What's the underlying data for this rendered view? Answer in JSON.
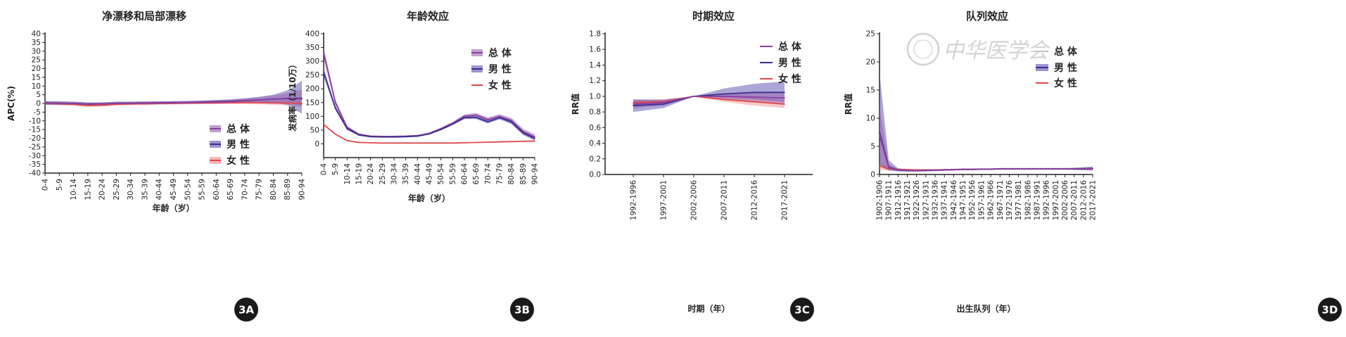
{
  "colors": {
    "overall": "#8b3fa0",
    "male": "#3d2f8c",
    "female": "#e0474c",
    "overall_band": "#9b5fb0",
    "male_band": "#5a4fb0",
    "female_band": "#f08a8c",
    "axis": "#222222",
    "badge": "#1a1a1a"
  },
  "watermark": {
    "text": "中华医学会",
    "icon": "seal-icon"
  },
  "chart_data": [
    {
      "id": "3A",
      "type": "line",
      "title": "净漂移和局部漂移",
      "xlabel": "年龄（岁）",
      "ylabel": "APC(%)",
      "badge": "3A",
      "categories": [
        "0-4",
        "5-9",
        "10-14",
        "15-19",
        "20-24",
        "25-29",
        "30-34",
        "35-39",
        "40-44",
        "45-49",
        "50-54",
        "55-59",
        "60-64",
        "65-69",
        "70-74",
        "75-79",
        "80-84",
        "85-89",
        "90-94"
      ],
      "ylim": [
        -40,
        40
      ],
      "yticks": [
        40,
        35,
        30,
        25,
        20,
        15,
        10,
        5,
        0,
        -5,
        -10,
        -15,
        -20,
        -25,
        -30,
        -35,
        -40
      ],
      "legend_position": "bottom-right",
      "legend": [
        {
          "name": "总体",
          "key": "overall",
          "style": "band"
        },
        {
          "name": "男性",
          "key": "male",
          "style": "band"
        },
        {
          "name": "女性",
          "key": "female",
          "style": "band"
        }
      ],
      "series": [
        {
          "name": "总体",
          "key": "overall",
          "values": [
            0.2,
            0.1,
            0,
            -0.5,
            -0.3,
            0,
            0.1,
            0.2,
            0.3,
            0.4,
            0.5,
            0.6,
            0.8,
            1,
            1.5,
            2,
            2.5,
            3,
            2.5
          ],
          "lower": [
            -0.8,
            -0.8,
            -0.9,
            -1.3,
            -1.1,
            -0.8,
            -0.7,
            -0.6,
            -0.5,
            -0.4,
            -0.3,
            -0.2,
            -0.2,
            0,
            0.3,
            0.5,
            0.5,
            0.3,
            -1.5
          ],
          "upper": [
            1.2,
            1,
            0.9,
            0.3,
            0.5,
            0.8,
            0.9,
            1,
            1.1,
            1.2,
            1.3,
            1.4,
            1.8,
            2.2,
            2.8,
            3.5,
            4.5,
            6,
            8
          ]
        },
        {
          "name": "男性",
          "key": "male",
          "values": [
            0.3,
            0.2,
            0,
            -0.3,
            -0.2,
            0.1,
            0.2,
            0.3,
            0.4,
            0.5,
            0.6,
            0.8,
            1,
            1.2,
            1.6,
            2,
            2.5,
            2.8,
            3
          ],
          "lower": [
            -0.7,
            -0.8,
            -1,
            -1.2,
            -1,
            -0.8,
            -0.6,
            -0.5,
            -0.4,
            -0.3,
            -0.2,
            -0.1,
            0,
            0.1,
            0.3,
            0.4,
            0.3,
            -0.8,
            -6
          ],
          "upper": [
            1.3,
            1.2,
            1,
            0.6,
            0.6,
            1,
            1,
            1.1,
            1.2,
            1.3,
            1.4,
            1.7,
            2,
            2.4,
            3,
            3.8,
            5,
            7.5,
            13
          ]
        },
        {
          "name": "女性",
          "key": "female",
          "values": [
            0,
            -0.2,
            -0.5,
            -1.2,
            -1,
            -0.5,
            -0.3,
            -0.2,
            0,
            0.1,
            0.2,
            0.3,
            0.4,
            0.5,
            0.5,
            0.4,
            0.3,
            0.2,
            0
          ],
          "lower": [
            -0.8,
            -1,
            -1.3,
            -2,
            -1.8,
            -1.2,
            -1,
            -0.9,
            -0.7,
            -0.6,
            -0.5,
            -0.4,
            -0.4,
            -0.3,
            -0.4,
            -0.5,
            -0.8,
            -1.2,
            -2
          ],
          "upper": [
            0.8,
            0.6,
            0.3,
            -0.4,
            -0.2,
            0.2,
            0.4,
            0.5,
            0.7,
            0.8,
            0.9,
            1,
            1.2,
            1.3,
            1.4,
            1.3,
            1.4,
            1.6,
            2
          ]
        }
      ]
    },
    {
      "id": "3B",
      "type": "line",
      "title": "年龄效应",
      "xlabel": "年龄（岁）",
      "ylabel": "发病率（1/10万）",
      "badge": "3B",
      "categories": [
        "0-4",
        "5-9",
        "10-14",
        "15-19",
        "20-24",
        "25-29",
        "30-34",
        "35-39",
        "40-44",
        "45-49",
        "50-54",
        "55-59",
        "60-64",
        "65-69",
        "70-74",
        "75-79",
        "80-84",
        "85-89",
        "90-94"
      ],
      "ylim": [
        -50,
        400
      ],
      "yticks": [
        400,
        350,
        300,
        250,
        200,
        150,
        100,
        50,
        0
      ],
      "legend_position": "top-right",
      "legend": [
        {
          "name": "总体",
          "key": "overall",
          "style": "band"
        },
        {
          "name": "男性",
          "key": "male",
          "style": "band"
        },
        {
          "name": "女性",
          "key": "female",
          "style": "line"
        }
      ],
      "series": [
        {
          "name": "总体",
          "key": "overall",
          "values": [
            330,
            150,
            60,
            35,
            28,
            27,
            27,
            28,
            30,
            38,
            55,
            75,
            100,
            105,
            88,
            100,
            85,
            45,
            25
          ],
          "lower": [
            310,
            140,
            55,
            32,
            26,
            25,
            25,
            26,
            28,
            35,
            51,
            70,
            93,
            98,
            80,
            92,
            75,
            35,
            15
          ],
          "upper": [
            350,
            160,
            65,
            38,
            30,
            29,
            29,
            30,
            32,
            41,
            59,
            80,
            107,
            112,
            96,
            108,
            95,
            55,
            35
          ]
        },
        {
          "name": "男性",
          "key": "male",
          "values": [
            260,
            130,
            55,
            32,
            26,
            25,
            25,
            26,
            28,
            36,
            52,
            72,
            95,
            96,
            80,
            95,
            80,
            40,
            20
          ],
          "lower": [
            245,
            122,
            51,
            30,
            24,
            23,
            23,
            24,
            26,
            34,
            49,
            68,
            90,
            90,
            74,
            89,
            72,
            32,
            12
          ],
          "upper": [
            275,
            138,
            59,
            34,
            28,
            27,
            27,
            28,
            30,
            38,
            55,
            76,
            100,
            102,
            86,
            101,
            88,
            48,
            28
          ]
        },
        {
          "name": "女性",
          "key": "female",
          "values": [
            70,
            35,
            12,
            5,
            4,
            3,
            3,
            3,
            3,
            3,
            3,
            3,
            4,
            5,
            6,
            7,
            8,
            9,
            10
          ],
          "lower": [
            66,
            32,
            10,
            4,
            3,
            2,
            2,
            2,
            2,
            2,
            2,
            2,
            3,
            4,
            5,
            6,
            6,
            7,
            7
          ],
          "upper": [
            74,
            38,
            14,
            6,
            5,
            4,
            4,
            4,
            4,
            4,
            4,
            4,
            5,
            6,
            7,
            8,
            10,
            11,
            13
          ]
        }
      ]
    },
    {
      "id": "3C",
      "type": "line",
      "title": "时期效应",
      "xlabel": "时期（年）",
      "ylabel": "RR值",
      "badge": "3C",
      "categories": [
        "1992-1996",
        "1997-2001",
        "2002-2006",
        "2007-2011",
        "2012-2016",
        "2017-2021"
      ],
      "ylim": [
        0,
        1.8
      ],
      "yticks": [
        1.8,
        1.6,
        1.4,
        1.2,
        1.0,
        0.8,
        0.6,
        0.4,
        0.2,
        0.0
      ],
      "ytick_labels": [
        "1.8",
        "1.6",
        "1.4",
        "1.2",
        "1.0",
        "0.8",
        "0.6",
        "0.4",
        "0.2",
        "0.0"
      ],
      "legend_position": "top-right",
      "legend": [
        {
          "name": "总体",
          "key": "overall",
          "style": "line"
        },
        {
          "name": "男性",
          "key": "male",
          "style": "line"
        },
        {
          "name": "女性",
          "key": "female",
          "style": "line"
        }
      ],
      "series": [
        {
          "name": "总体",
          "key": "overall",
          "values": [
            0.9,
            0.92,
            1.0,
            1.0,
            0.99,
            0.98
          ],
          "lower": [
            0.85,
            0.88,
            1.0,
            0.96,
            0.93,
            0.9
          ],
          "upper": [
            0.95,
            0.96,
            1.0,
            1.04,
            1.05,
            1.06
          ]
        },
        {
          "name": "男性",
          "key": "male",
          "values": [
            0.88,
            0.9,
            1.0,
            1.03,
            1.05,
            1.05
          ],
          "lower": [
            0.8,
            0.85,
            1.0,
            0.98,
            0.96,
            0.93
          ],
          "upper": [
            0.96,
            0.95,
            1.0,
            1.1,
            1.16,
            1.19
          ]
        },
        {
          "name": "女性",
          "key": "female",
          "values": [
            0.92,
            0.93,
            1.0,
            0.96,
            0.93,
            0.9
          ],
          "lower": [
            0.88,
            0.9,
            1.0,
            0.93,
            0.88,
            0.85
          ],
          "upper": [
            0.96,
            0.96,
            1.0,
            0.99,
            0.98,
            0.95
          ]
        }
      ]
    },
    {
      "id": "3D",
      "type": "line",
      "title": "队列效应",
      "xlabel": "出生队列（年）",
      "ylabel": "RR值",
      "badge": "3D",
      "categories": [
        "1902-1906",
        "1907-1911",
        "1912-1916",
        "1917-1921",
        "1922-1926",
        "1927-1931",
        "1932-1936",
        "1937-1941",
        "1942-1946",
        "1947-1951",
        "1952-1956",
        "1957-1961",
        "1962-1966",
        "1967-1971",
        "1972-1976",
        "1977-1981",
        "1982-1986",
        "1987-1991",
        "1992-1996",
        "1997-2001",
        "2002-2006",
        "2007-2011",
        "2012-2016",
        "2017-2021"
      ],
      "ylim": [
        0,
        25
      ],
      "yticks": [
        25,
        20,
        15,
        10,
        5,
        0
      ],
      "legend_position": "top-right",
      "legend": [
        {
          "name": "总体",
          "key": "overall",
          "style": "line"
        },
        {
          "name": "男性",
          "key": "male",
          "style": "band"
        },
        {
          "name": "女性",
          "key": "female",
          "style": "line"
        }
      ],
      "series": [
        {
          "name": "总体",
          "key": "overall",
          "values": [
            7,
            1.2,
            0.8,
            0.7,
            0.7,
            0.7,
            0.75,
            0.8,
            0.85,
            0.9,
            0.9,
            0.95,
            0.95,
            1,
            1,
            1,
            1,
            1,
            1,
            1,
            1,
            1,
            1,
            1.05
          ],
          "lower": [
            2,
            0.8,
            0.6,
            0.55,
            0.55,
            0.6,
            0.65,
            0.7,
            0.75,
            0.8,
            0.8,
            0.85,
            0.85,
            0.9,
            0.9,
            0.9,
            0.9,
            0.9,
            0.9,
            0.9,
            0.9,
            0.85,
            0.8,
            0.75
          ],
          "upper": [
            12,
            1.8,
            1.0,
            0.9,
            0.85,
            0.85,
            0.85,
            0.9,
            0.95,
            1,
            1,
            1.05,
            1.05,
            1.1,
            1.1,
            1.1,
            1.1,
            1.1,
            1.1,
            1.1,
            1.1,
            1.15,
            1.2,
            1.3
          ]
        },
        {
          "name": "男性",
          "key": "male",
          "values": [
            7.5,
            1.3,
            0.8,
            0.7,
            0.7,
            0.72,
            0.75,
            0.8,
            0.85,
            0.9,
            0.9,
            0.95,
            0.95,
            1,
            1,
            1,
            1,
            1,
            1,
            1,
            1,
            1,
            1.02,
            1.05
          ],
          "lower": [
            1.5,
            0.7,
            0.55,
            0.5,
            0.5,
            0.55,
            0.6,
            0.65,
            0.7,
            0.75,
            0.75,
            0.8,
            0.8,
            0.85,
            0.85,
            0.85,
            0.85,
            0.85,
            0.85,
            0.85,
            0.85,
            0.8,
            0.75,
            0.7
          ],
          "upper": [
            18,
            2.5,
            1.1,
            0.9,
            0.9,
            0.9,
            0.9,
            0.95,
            1,
            1.05,
            1.05,
            1.1,
            1.1,
            1.15,
            1.15,
            1.15,
            1.15,
            1.15,
            1.15,
            1.15,
            1.15,
            1.2,
            1.3,
            1.4
          ]
        },
        {
          "name": "女性",
          "key": "female",
          "values": [
            1.5,
            1.0,
            0.9,
            0.85,
            0.8,
            0.8,
            0.8,
            0.85,
            0.85,
            0.9,
            0.9,
            0.95,
            0.95,
            1,
            1,
            1,
            1,
            1,
            1,
            1,
            1,
            1,
            1,
            1
          ],
          "lower": [
            0.8,
            0.7,
            0.7,
            0.7,
            0.65,
            0.65,
            0.7,
            0.7,
            0.75,
            0.75,
            0.8,
            0.8,
            0.85,
            0.85,
            0.9,
            0.9,
            0.9,
            0.9,
            0.9,
            0.9,
            0.9,
            0.85,
            0.85,
            0.8
          ],
          "upper": [
            2.2,
            1.3,
            1.1,
            1.0,
            0.95,
            0.95,
            0.95,
            1,
            1,
            1.05,
            1.05,
            1.1,
            1.1,
            1.15,
            1.15,
            1.15,
            1.15,
            1.15,
            1.15,
            1.15,
            1.15,
            1.15,
            1.2,
            1.25
          ]
        }
      ]
    }
  ]
}
